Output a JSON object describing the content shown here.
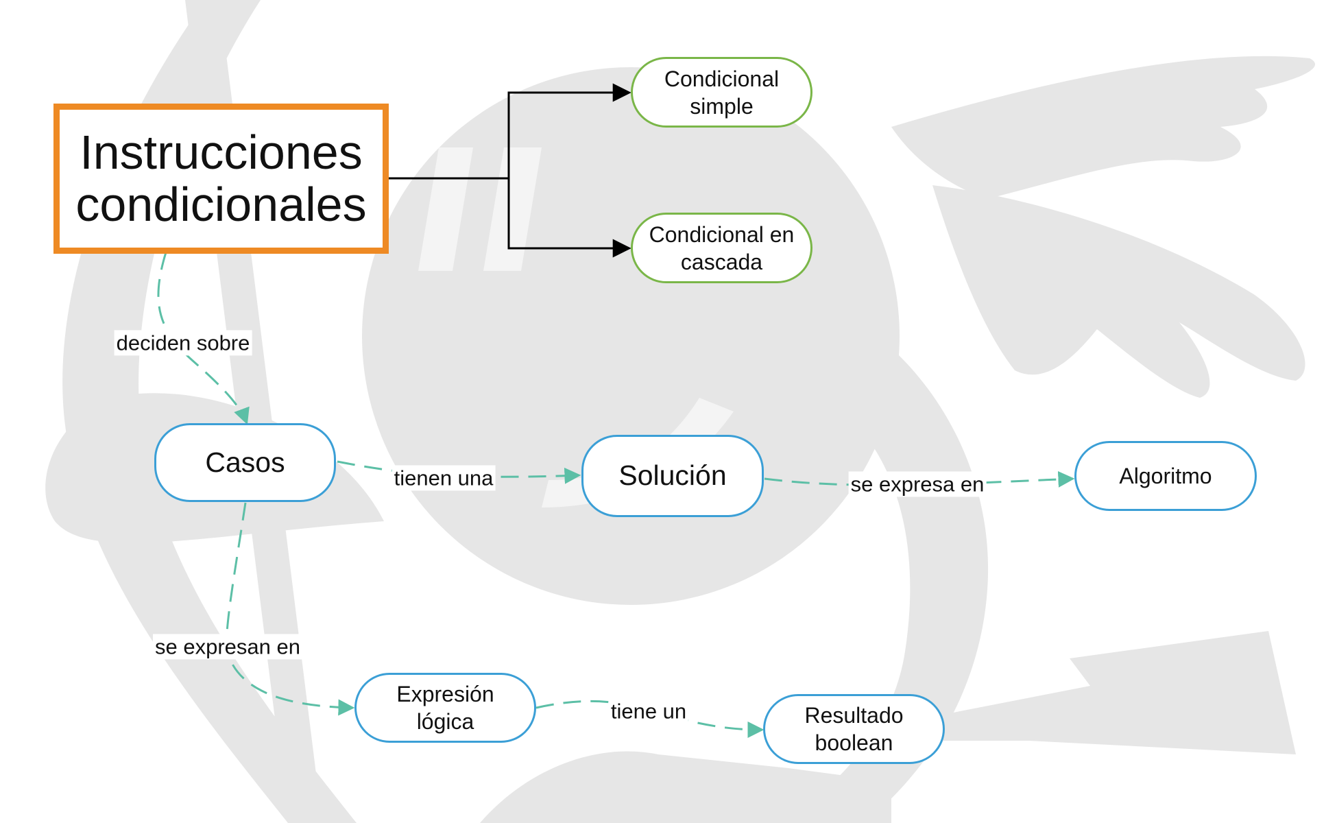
{
  "diagram": {
    "main_node": "Instrucciones condicionales",
    "nodes": {
      "condicional_simple": "Condicional simple",
      "condicional_cascada": "Condicional en cascada",
      "casos": "Casos",
      "solucion": "Solución",
      "algoritmo": "Algoritmo",
      "expresion_logica": "Expresión lógica",
      "resultado_boolean": "Resultado boolean"
    },
    "edge_labels": {
      "deciden_sobre": "deciden sobre",
      "tienen_una": "tienen una",
      "se_expresa_en": "se expresa en",
      "se_expresan_en": "se expresan en",
      "tiene_un": "tiene un"
    }
  },
  "colors": {
    "main_border": "#ee8a24",
    "green_border": "#7ab648",
    "blue_border": "#3b9fd6",
    "dashed_connector": "#5cbfa6",
    "solid_connector": "#000000",
    "background_graphic": "#e6e6e6"
  }
}
